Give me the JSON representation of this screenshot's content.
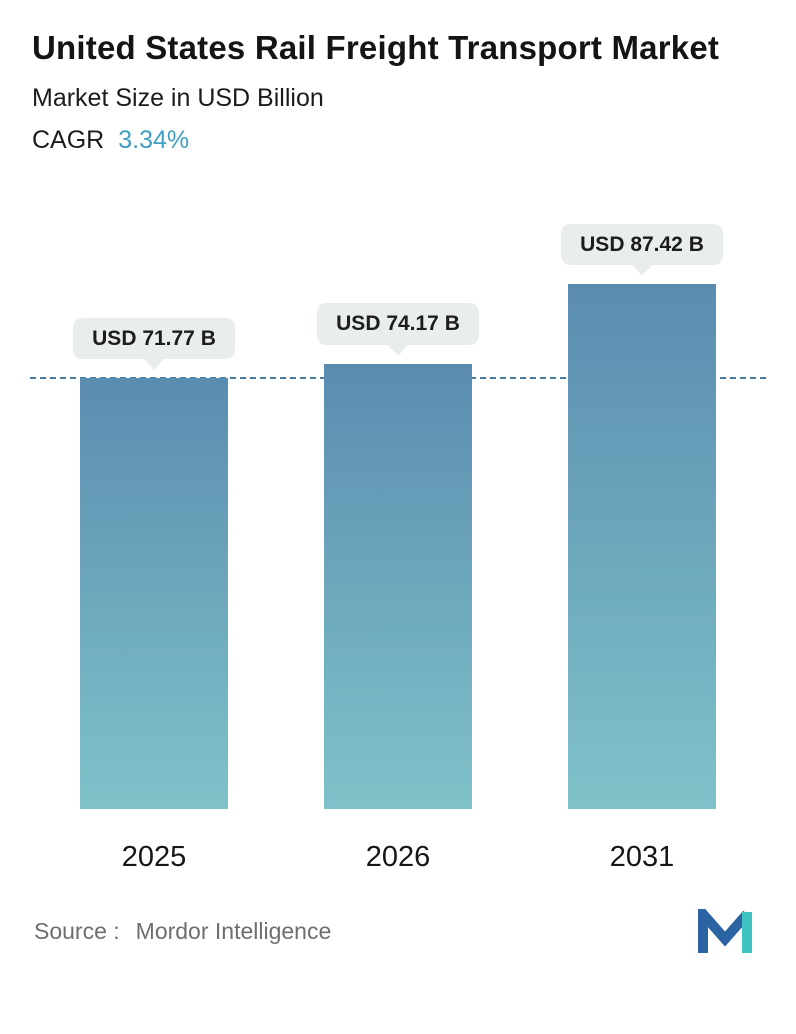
{
  "header": {
    "title": "United States Rail Freight Transport Market",
    "subtitle": "Market Size in USD Billion",
    "cagr_label": "CAGR",
    "cagr_value": "3.34%"
  },
  "chart_data": {
    "type": "bar",
    "title": "United States Rail Freight Transport Market",
    "ylabel": "Market Size in USD Billion",
    "categories": [
      "2025",
      "2026",
      "2031"
    ],
    "values": [
      71.77,
      74.17,
      87.42
    ],
    "value_labels": [
      "USD 71.77 B",
      "USD 74.17 B",
      "USD 87.42 B"
    ],
    "cagr_percent": 3.34,
    "ylim": [
      0,
      100
    ],
    "grid": false,
    "legend": false,
    "reference_line_value": 71.77
  },
  "footer": {
    "source_label": "Source :",
    "source_value": "Mordor Intelligence"
  },
  "icons": {
    "logo": "mordor-intelligence-logo",
    "pill_pointer": "triangle-down-icon"
  },
  "colors": {
    "accent_teal": "#3f9fc4",
    "bar_top": "#5a8cb0",
    "bar_bottom": "#7fc2c9",
    "dashed_line": "#4a7da3",
    "pill_bg": "#e9edec",
    "text_dark": "#161616",
    "source_gray": "#6e6e6e",
    "logo_blue": "#2b63a3",
    "logo_teal": "#3fc4c4"
  }
}
